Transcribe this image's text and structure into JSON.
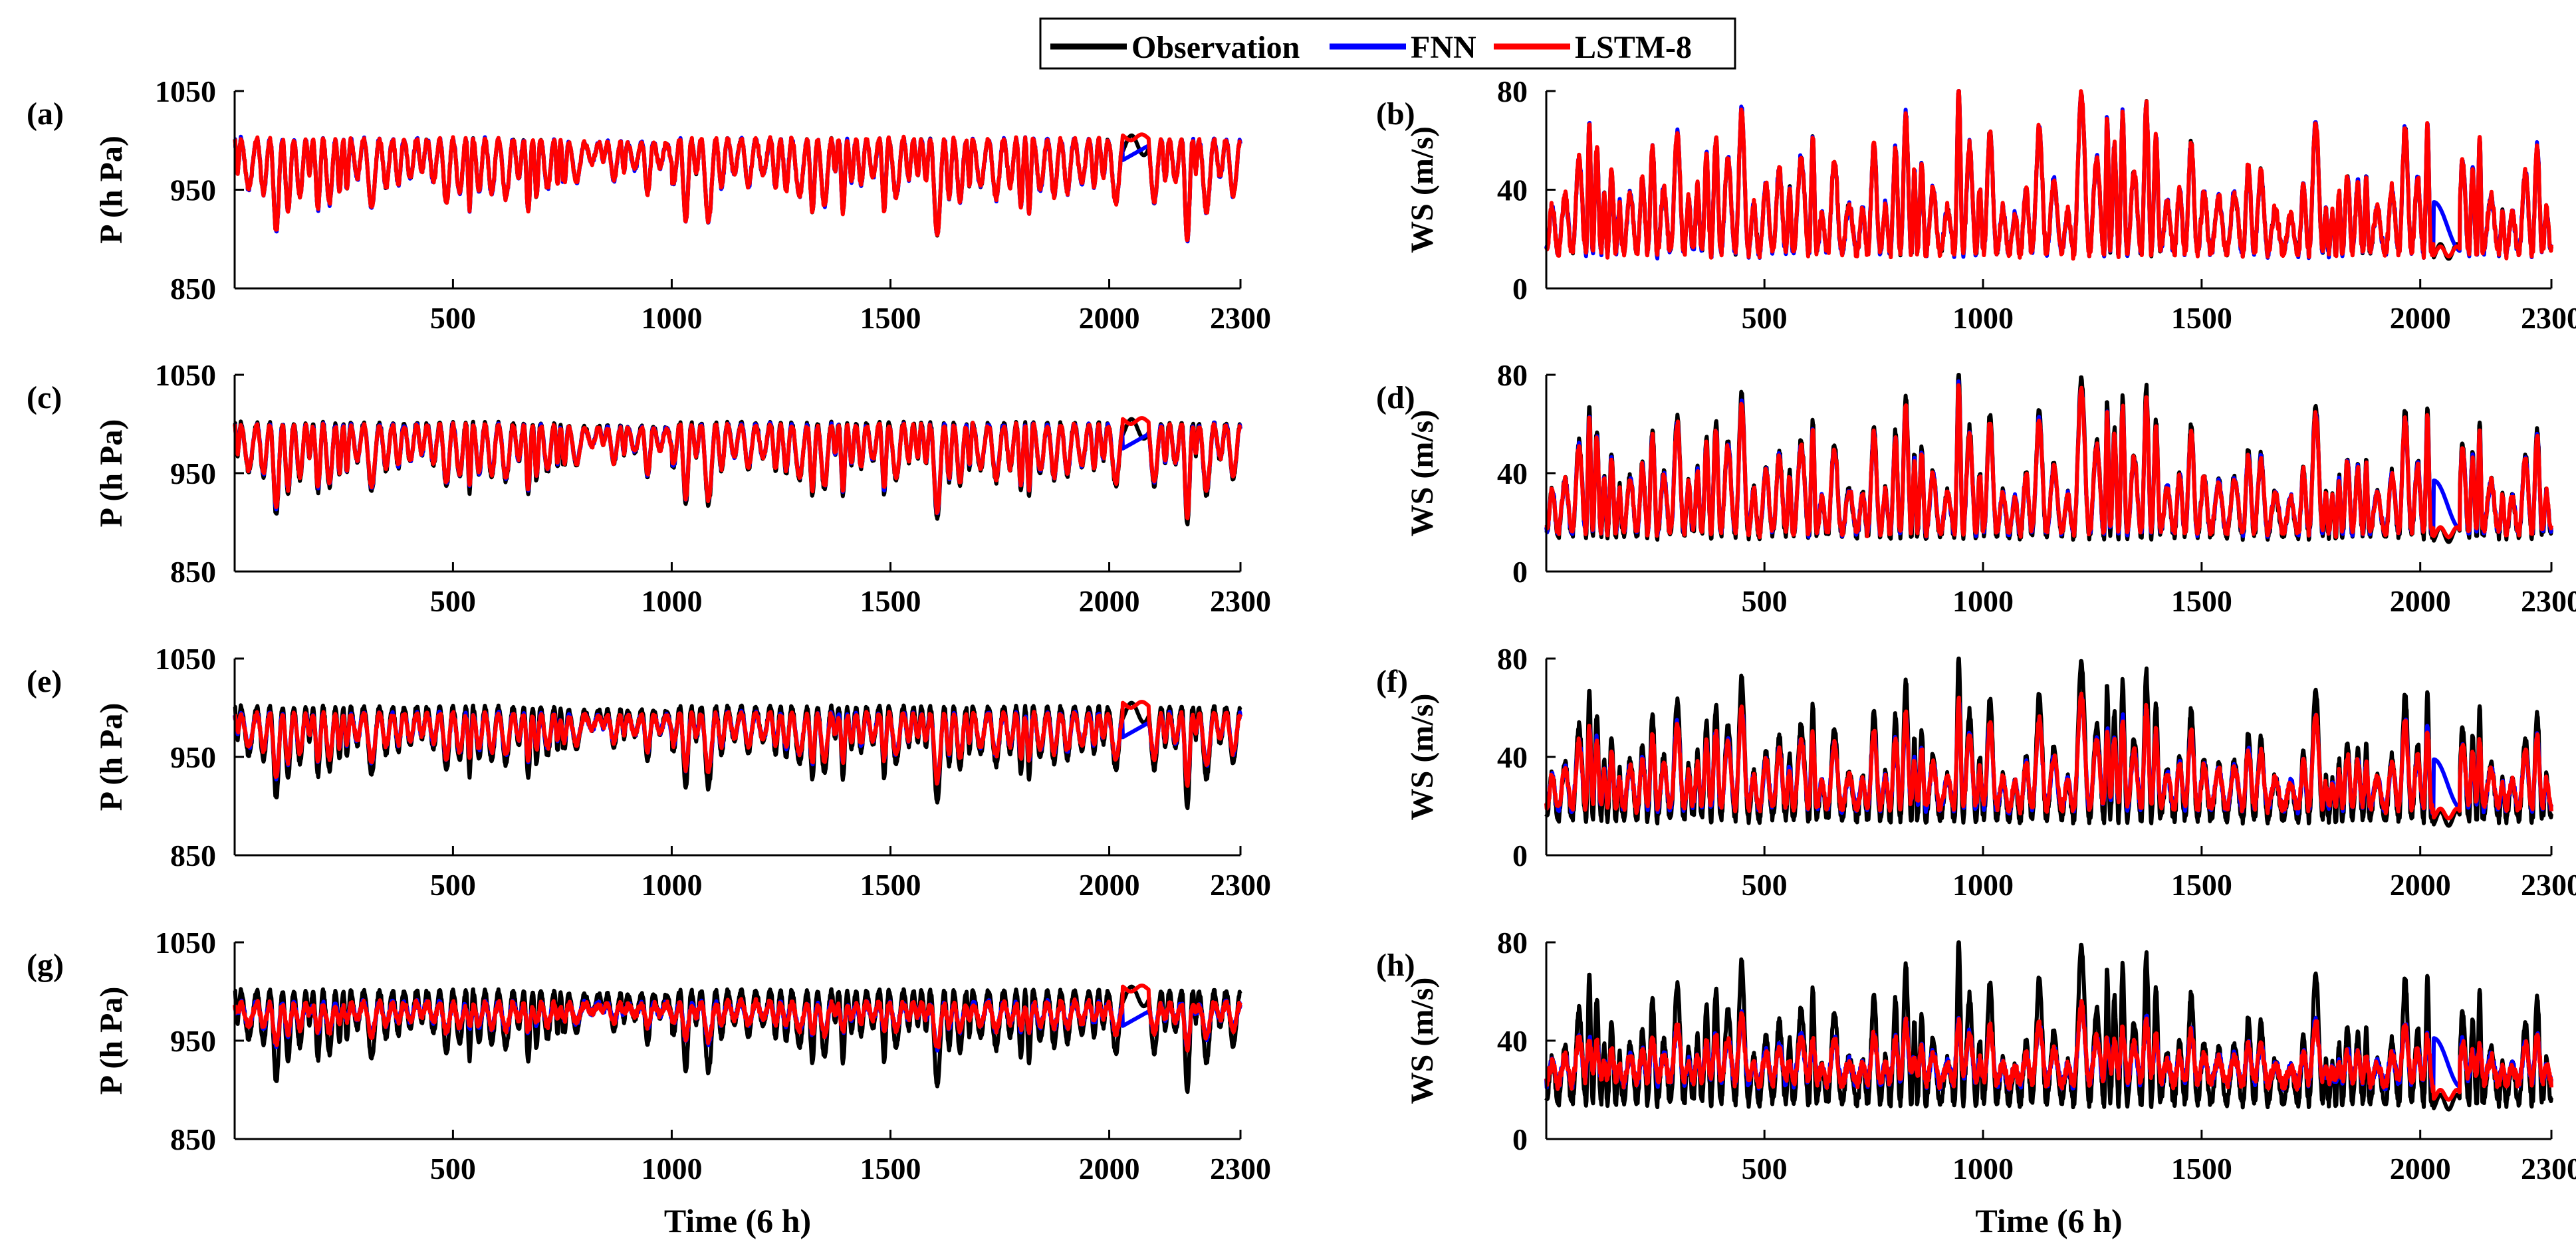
{
  "legend": {
    "entries": [
      {
        "label": "Observation",
        "color": "#000000"
      },
      {
        "label": "FNN",
        "color": "#0000ff"
      },
      {
        "label": "LSTM-8",
        "color": "#ff0000"
      }
    ]
  },
  "colors": {
    "observation": "#000000",
    "fnn": "#0000ff",
    "lstm": "#ff0000"
  },
  "chart_data": [
    {
      "type": "line",
      "panel": "(a)",
      "ylabel": "P (h Pa)",
      "xlabel": "",
      "ylim": [
        850,
        1050
      ],
      "yticks": [
        "850",
        "950",
        "1050"
      ],
      "xlim": [
        1,
        2300
      ],
      "xticks": [
        "500",
        "1000",
        "1500",
        "2000",
        "2300"
      ],
      "variable": "pressure",
      "level": 0,
      "series": [
        {
          "name": "Observation"
        },
        {
          "name": "FNN"
        },
        {
          "name": "LSTM-8"
        }
      ]
    },
    {
      "type": "line",
      "panel": "(b)",
      "ylabel": "WS (m/s)",
      "xlabel": "",
      "ylim": [
        0,
        80
      ],
      "yticks": [
        "0",
        "40",
        "80"
      ],
      "xlim": [
        1,
        2300
      ],
      "xticks": [
        "500",
        "1000",
        "1500",
        "2000",
        "2300"
      ],
      "variable": "wind",
      "level": 0,
      "series": [
        {
          "name": "Observation"
        },
        {
          "name": "FNN"
        },
        {
          "name": "LSTM-8"
        }
      ]
    },
    {
      "type": "line",
      "panel": "(c)",
      "ylabel": "P (h Pa)",
      "xlabel": "",
      "ylim": [
        850,
        1050
      ],
      "yticks": [
        "850",
        "950",
        "1050"
      ],
      "xlim": [
        1,
        2300
      ],
      "xticks": [
        "500",
        "1000",
        "1500",
        "2000",
        "2300"
      ],
      "variable": "pressure",
      "level": 1,
      "series": [
        {
          "name": "Observation"
        },
        {
          "name": "FNN"
        },
        {
          "name": "LSTM-8"
        }
      ]
    },
    {
      "type": "line",
      "panel": "(d)",
      "ylabel": "WS (m/s)",
      "xlabel": "",
      "ylim": [
        0,
        80
      ],
      "yticks": [
        "0",
        "40",
        "80"
      ],
      "xlim": [
        1,
        2300
      ],
      "xticks": [
        "500",
        "1000",
        "1500",
        "2000",
        "2300"
      ],
      "variable": "wind",
      "level": 1,
      "series": [
        {
          "name": "Observation"
        },
        {
          "name": "FNN"
        },
        {
          "name": "LSTM-8"
        }
      ]
    },
    {
      "type": "line",
      "panel": "(e)",
      "ylabel": "P (h Pa)",
      "xlabel": "",
      "ylim": [
        850,
        1050
      ],
      "yticks": [
        "850",
        "950",
        "1050"
      ],
      "xlim": [
        1,
        2300
      ],
      "xticks": [
        "500",
        "1000",
        "1500",
        "2000",
        "2300"
      ],
      "variable": "pressure",
      "level": 2,
      "series": [
        {
          "name": "Observation"
        },
        {
          "name": "FNN"
        },
        {
          "name": "LSTM-8"
        }
      ]
    },
    {
      "type": "line",
      "panel": "(f)",
      "ylabel": "WS (m/s)",
      "xlabel": "",
      "ylim": [
        0,
        80
      ],
      "yticks": [
        "0",
        "40",
        "80"
      ],
      "xlim": [
        1,
        2300
      ],
      "xticks": [
        "500",
        "1000",
        "1500",
        "2000",
        "2300"
      ],
      "variable": "wind",
      "level": 2,
      "series": [
        {
          "name": "Observation"
        },
        {
          "name": "FNN"
        },
        {
          "name": "LSTM-8"
        }
      ]
    },
    {
      "type": "line",
      "panel": "(g)",
      "ylabel": "P (h Pa)",
      "xlabel": "Time (6 h)",
      "ylim": [
        850,
        1050
      ],
      "yticks": [
        "850",
        "950",
        "1050"
      ],
      "xlim": [
        1,
        2300
      ],
      "xticks": [
        "500",
        "1000",
        "1500",
        "2000",
        "2300"
      ],
      "variable": "pressure",
      "level": 3,
      "series": [
        {
          "name": "Observation"
        },
        {
          "name": "FNN"
        },
        {
          "name": "LSTM-8"
        }
      ]
    },
    {
      "type": "line",
      "panel": "(h)",
      "ylabel": "WS (m/s)",
      "xlabel": "Time (6 h)",
      "ylim": [
        0,
        80
      ],
      "yticks": [
        "0",
        "40",
        "80"
      ],
      "xlim": [
        1,
        2300
      ],
      "xticks": [
        "500",
        "1000",
        "1500",
        "2000",
        "2300"
      ],
      "variable": "wind",
      "level": 3,
      "series": [
        {
          "name": "Observation"
        },
        {
          "name": "FNN"
        },
        {
          "name": "LSTM-8"
        }
      ]
    }
  ]
}
